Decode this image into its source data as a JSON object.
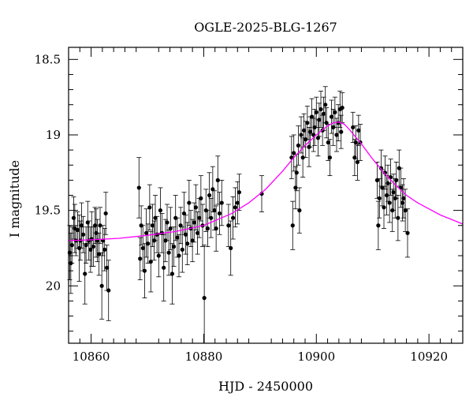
{
  "chart_data": {
    "type": "scatter",
    "title": "OGLE-2025-BLG-1267",
    "xlabel": "HJD - 2450000",
    "ylabel": "I magnitude",
    "xlim": [
      10856,
      10926
    ],
    "ylim": [
      20.38,
      18.42
    ],
    "y_inverted": true,
    "grid": false,
    "x_ticks": [
      10860,
      10880,
      10900,
      10920
    ],
    "x_tick_labels": [
      "10860",
      "10880",
      "10900",
      "10920"
    ],
    "y_ticks": [
      18.5,
      19,
      19.5,
      20
    ],
    "y_tick_labels": [
      "18.5",
      "19",
      "19.5",
      "20"
    ],
    "colors": {
      "data": "#000000",
      "model": "#ff00ff"
    },
    "series": [
      {
        "kind": "points_with_error_bars",
        "points": [
          [
            10856.2,
            19.78,
            0.18
          ],
          [
            10856.4,
            19.85,
            0.2
          ],
          [
            10856.6,
            19.73,
            0.12
          ],
          [
            10856.9,
            19.55,
            0.14
          ],
          [
            10857.1,
            19.62,
            0.16
          ],
          [
            10857.3,
            19.7,
            0.1
          ],
          [
            10857.6,
            19.63,
            0.12
          ],
          [
            10857.9,
            19.75,
            0.22
          ],
          [
            10858.1,
            19.7,
            0.13
          ],
          [
            10858.3,
            19.6,
            0.15
          ],
          [
            10858.6,
            19.66,
            0.12
          ],
          [
            10858.9,
            19.92,
            0.2
          ],
          [
            10859.1,
            19.73,
            0.12
          ],
          [
            10859.4,
            19.58,
            0.14
          ],
          [
            10859.6,
            19.7,
            0.13
          ],
          [
            10859.9,
            19.76,
            0.15
          ],
          [
            10860.1,
            19.69,
            0.18
          ],
          [
            10860.4,
            19.74,
            0.13
          ],
          [
            10860.7,
            19.6,
            0.12
          ],
          [
            10860.9,
            19.65,
            0.16
          ],
          [
            10861.1,
            19.7,
            0.14
          ],
          [
            10861.4,
            19.79,
            0.14
          ],
          [
            10861.6,
            19.6,
            0.12
          ],
          [
            10861.9,
            20.0,
            0.22
          ],
          [
            10862.1,
            19.7,
            0.1
          ],
          [
            10862.4,
            19.76,
            0.14
          ],
          [
            10862.6,
            19.52,
            0.14
          ],
          [
            10862.8,
            19.88,
            0.15
          ],
          [
            10863.1,
            20.03,
            0.2
          ],
          [
            10868.5,
            19.35,
            0.2
          ],
          [
            10868.7,
            19.82,
            0.14
          ],
          [
            10868.9,
            19.6,
            0.13
          ],
          [
            10869.2,
            19.75,
            0.15
          ],
          [
            10869.5,
            19.9,
            0.18
          ],
          [
            10869.8,
            19.65,
            0.16
          ],
          [
            10870.1,
            19.72,
            0.13
          ],
          [
            10870.4,
            19.48,
            0.15
          ],
          [
            10870.6,
            19.84,
            0.2
          ],
          [
            10870.9,
            19.6,
            0.14
          ],
          [
            10871.2,
            19.7,
            0.13
          ],
          [
            10871.4,
            19.55,
            0.15
          ],
          [
            10871.7,
            19.66,
            0.12
          ],
          [
            10872.0,
            19.8,
            0.14
          ],
          [
            10872.3,
            19.5,
            0.15
          ],
          [
            10872.6,
            19.65,
            0.13
          ],
          [
            10872.9,
            19.88,
            0.22
          ],
          [
            10873.2,
            19.7,
            0.14
          ],
          [
            10873.5,
            19.58,
            0.12
          ],
          [
            10873.8,
            19.78,
            0.15
          ],
          [
            10874.1,
            19.62,
            0.14
          ],
          [
            10874.4,
            19.92,
            0.2
          ],
          [
            10874.7,
            19.74,
            0.13
          ],
          [
            10875.0,
            19.55,
            0.15
          ],
          [
            10875.3,
            19.68,
            0.13
          ],
          [
            10875.6,
            19.8,
            0.14
          ],
          [
            10875.9,
            19.6,
            0.12
          ],
          [
            10876.2,
            19.76,
            0.15
          ],
          [
            10876.5,
            19.52,
            0.14
          ],
          [
            10876.8,
            19.66,
            0.13
          ],
          [
            10877.1,
            19.72,
            0.14
          ],
          [
            10877.4,
            19.45,
            0.15
          ],
          [
            10877.7,
            19.62,
            0.12
          ],
          [
            10878.0,
            19.7,
            0.14
          ],
          [
            10878.3,
            19.58,
            0.13
          ],
          [
            10878.6,
            19.48,
            0.15
          ],
          [
            10878.9,
            19.65,
            0.14
          ],
          [
            10879.2,
            19.55,
            0.13
          ],
          [
            10879.5,
            19.42,
            0.15
          ],
          [
            10879.8,
            19.6,
            0.14
          ],
          [
            10880.1,
            20.08,
            0.35
          ],
          [
            10880.4,
            19.5,
            0.14
          ],
          [
            10880.7,
            19.62,
            0.12
          ],
          [
            10881.0,
            19.4,
            0.15
          ],
          [
            10881.3,
            19.55,
            0.13
          ],
          [
            10881.6,
            19.36,
            0.15
          ],
          [
            10881.9,
            19.5,
            0.13
          ],
          [
            10882.2,
            19.62,
            0.15
          ],
          [
            10882.5,
            19.3,
            0.16
          ],
          [
            10882.8,
            19.52,
            0.14
          ],
          [
            10883.2,
            19.45,
            0.15
          ],
          [
            10884.4,
            19.6,
            0.14
          ],
          [
            10884.8,
            19.75,
            0.18
          ],
          [
            10885.2,
            19.55,
            0.14
          ],
          [
            10885.6,
            19.48,
            0.13
          ],
          [
            10886.0,
            19.45,
            0.14
          ],
          [
            10886.3,
            19.38,
            0.12
          ],
          [
            10890.3,
            19.39,
            0.12
          ],
          [
            10895.6,
            19.15,
            0.14
          ],
          [
            10895.8,
            19.6,
            0.16
          ],
          [
            10896.0,
            19.12,
            0.12
          ],
          [
            10896.3,
            19.35,
            0.14
          ],
          [
            10896.5,
            19.25,
            0.12
          ],
          [
            10896.8,
            19.07,
            0.13
          ],
          [
            10897.0,
            19.5,
            0.15
          ],
          [
            10897.3,
            19.0,
            0.12
          ],
          [
            10897.6,
            19.15,
            0.13
          ],
          [
            10897.8,
            18.97,
            0.11
          ],
          [
            10898.1,
            19.03,
            0.12
          ],
          [
            10898.4,
            18.92,
            0.11
          ],
          [
            10898.7,
            19.08,
            0.13
          ],
          [
            10898.9,
            18.98,
            0.1
          ],
          [
            10899.2,
            18.88,
            0.12
          ],
          [
            10899.5,
            19.0,
            0.11
          ],
          [
            10899.7,
            18.95,
            0.12
          ],
          [
            10900.0,
            18.85,
            0.1
          ],
          [
            10900.3,
            19.02,
            0.12
          ],
          [
            10900.5,
            18.9,
            0.11
          ],
          [
            10900.8,
            18.83,
            0.12
          ],
          [
            10901.1,
            18.97,
            0.1
          ],
          [
            10901.3,
            18.86,
            0.11
          ],
          [
            10901.6,
            18.8,
            0.12
          ],
          [
            10901.8,
            18.92,
            0.1
          ],
          [
            10902.1,
            19.05,
            0.12
          ],
          [
            10902.4,
            19.15,
            0.12
          ],
          [
            10902.7,
            18.88,
            0.11
          ],
          [
            10903.0,
            18.95,
            0.12
          ],
          [
            10903.3,
            18.85,
            0.1
          ],
          [
            10903.6,
            19.0,
            0.11
          ],
          [
            10903.9,
            18.92,
            0.12
          ],
          [
            10904.2,
            18.83,
            0.12
          ],
          [
            10904.4,
            18.98,
            0.11
          ],
          [
            10904.6,
            18.82,
            0.1
          ],
          [
            10906.5,
            18.95,
            0.1
          ],
          [
            10906.8,
            19.15,
            0.12
          ],
          [
            10907.0,
            19.05,
            0.11
          ],
          [
            10907.3,
            19.18,
            0.12
          ],
          [
            10907.5,
            18.97,
            0.1
          ],
          [
            10907.8,
            19.05,
            0.12
          ],
          [
            10910.8,
            19.3,
            0.12
          ],
          [
            10911.0,
            19.6,
            0.16
          ],
          [
            10911.2,
            19.42,
            0.13
          ],
          [
            10911.5,
            19.22,
            0.12
          ],
          [
            10911.7,
            19.35,
            0.12
          ],
          [
            10912.0,
            19.48,
            0.14
          ],
          [
            10912.2,
            19.25,
            0.11
          ],
          [
            10912.5,
            19.4,
            0.13
          ],
          [
            10912.7,
            19.32,
            0.12
          ],
          [
            10913.0,
            19.45,
            0.13
          ],
          [
            10913.2,
            19.28,
            0.12
          ],
          [
            10913.5,
            19.5,
            0.14
          ],
          [
            10913.7,
            19.38,
            0.12
          ],
          [
            10914.0,
            19.42,
            0.13
          ],
          [
            10914.2,
            19.3,
            0.12
          ],
          [
            10914.5,
            19.55,
            0.15
          ],
          [
            10914.7,
            19.22,
            0.12
          ],
          [
            10915.0,
            19.35,
            0.13
          ],
          [
            10915.3,
            19.45,
            0.12
          ],
          [
            10915.5,
            19.42,
            0.13
          ],
          [
            10915.8,
            19.5,
            0.14
          ],
          [
            10916.2,
            19.65,
            0.16
          ]
        ]
      },
      {
        "kind": "model_curve",
        "points": [
          [
            10856,
            19.7
          ],
          [
            10860,
            19.695
          ],
          [
            10865,
            19.685
          ],
          [
            10870,
            19.665
          ],
          [
            10875,
            19.64
          ],
          [
            10880,
            19.6
          ],
          [
            10885,
            19.52
          ],
          [
            10888,
            19.45
          ],
          [
            10891,
            19.36
          ],
          [
            10894,
            19.24
          ],
          [
            10896,
            19.15
          ],
          [
            10898,
            19.07
          ],
          [
            10900,
            19.0
          ],
          [
            10902,
            18.94
          ],
          [
            10903,
            18.92
          ],
          [
            10904,
            18.915
          ],
          [
            10905,
            18.93
          ],
          [
            10906,
            18.97
          ],
          [
            10908,
            19.06
          ],
          [
            10910,
            19.16
          ],
          [
            10912,
            19.25
          ],
          [
            10914,
            19.33
          ],
          [
            10916,
            19.4
          ],
          [
            10918,
            19.45
          ],
          [
            10920,
            19.49
          ],
          [
            10922,
            19.53
          ],
          [
            10924,
            19.56
          ],
          [
            10926,
            19.59
          ]
        ]
      }
    ]
  }
}
